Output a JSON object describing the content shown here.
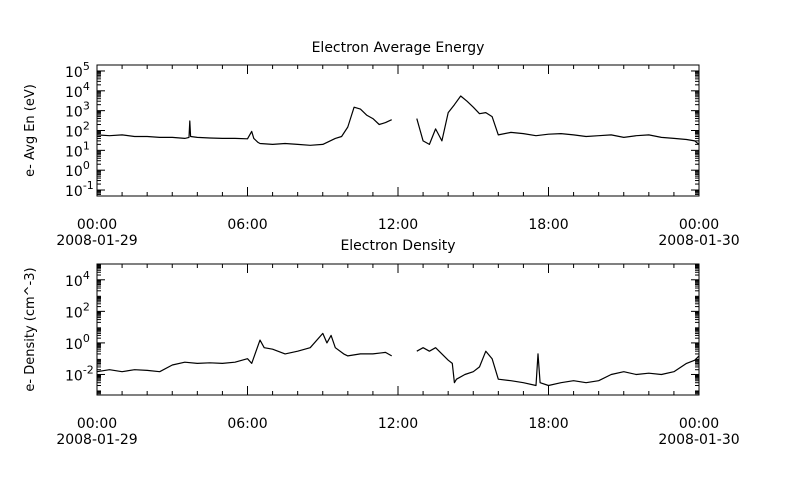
{
  "chart_data": [
    {
      "type": "line",
      "title": "Electron Average Energy",
      "ylabel": "e- Avg En (eV)",
      "yscale": "log",
      "ylim": [
        0.05,
        200000
      ],
      "y_ticks": [
        {
          "base": "10",
          "exp": "-1"
        },
        {
          "base": "10",
          "exp": "0"
        },
        {
          "base": "10",
          "exp": "1"
        },
        {
          "base": "10",
          "exp": "2"
        },
        {
          "base": "10",
          "exp": "3"
        },
        {
          "base": "10",
          "exp": "4"
        },
        {
          "base": "10",
          "exp": "5"
        }
      ],
      "xlim": [
        "2008-01-29T00:00",
        "2008-01-30T00:00"
      ],
      "x_ticks": [
        {
          "time": "00:00",
          "date": "2008-01-29"
        },
        {
          "time": "06:00",
          "date": ""
        },
        {
          "time": "12:00",
          "date": ""
        },
        {
          "time": "18:00",
          "date": ""
        },
        {
          "time": "00:00",
          "date": "2008-01-30"
        }
      ],
      "grid": false,
      "series": [
        {
          "color": "#000000",
          "x": [
            "00:00",
            "00:30",
            "01:00",
            "01:30",
            "02:00",
            "02:30",
            "03:00",
            "03:30",
            "03:40",
            "03:42",
            "03:44",
            "04:00",
            "04:30",
            "05:00",
            "05:30",
            "06:00",
            "06:10",
            "06:15",
            "06:25",
            "06:30",
            "07:00",
            "07:30",
            "08:00",
            "08:30",
            "09:00",
            "09:30",
            "09:45",
            "10:00",
            "10:15",
            "10:30",
            "10:45",
            "11:00",
            "11:15",
            "11:30",
            "11:45",
            "null",
            "12:45",
            "13:00",
            "13:15",
            "13:30",
            "13:45",
            "14:00",
            "14:15",
            "14:30",
            "14:45",
            "15:00",
            "15:15",
            "15:30",
            "15:45",
            "16:00",
            "16:30",
            "17:00",
            "17:30",
            "18:00",
            "18:30",
            "19:00",
            "19:30",
            "20:00",
            "20:30",
            "21:00",
            "21:30",
            "22:00",
            "22:30",
            "23:00",
            "23:30",
            "23:50",
            "24:00"
          ],
          "values": [
            60,
            55,
            60,
            50,
            50,
            45,
            45,
            40,
            45,
            300,
            50,
            45,
            42,
            40,
            40,
            38,
            90,
            40,
            25,
            22,
            20,
            22,
            20,
            18,
            20,
            40,
            50,
            150,
            1500,
            1200,
            600,
            400,
            200,
            250,
            350,
            null,
            400,
            30,
            20,
            120,
            30,
            800,
            2000,
            5500,
            3000,
            1500,
            700,
            800,
            500,
            60,
            80,
            70,
            55,
            65,
            70,
            60,
            50,
            55,
            60,
            45,
            55,
            60,
            45,
            40,
            35,
            30,
            20
          ]
        }
      ]
    },
    {
      "type": "line",
      "title": "Electron Density",
      "ylabel": "e- Density (cm^-3)",
      "yscale": "log",
      "ylim": [
        0.0005,
        100000
      ],
      "y_ticks": [
        {
          "base": "10",
          "exp": "-2"
        },
        {
          "base": "10",
          "exp": "0"
        },
        {
          "base": "10",
          "exp": "2"
        },
        {
          "base": "10",
          "exp": "4"
        }
      ],
      "xlim": [
        "2008-01-29T00:00",
        "2008-01-30T00:00"
      ],
      "x_ticks": [
        {
          "time": "00:00",
          "date": "2008-01-29"
        },
        {
          "time": "06:00",
          "date": ""
        },
        {
          "time": "12:00",
          "date": ""
        },
        {
          "time": "18:00",
          "date": ""
        },
        {
          "time": "00:00",
          "date": "2008-01-30"
        }
      ],
      "grid": false,
      "series": [
        {
          "color": "#000000",
          "x": [
            "00:00",
            "00:30",
            "01:00",
            "01:30",
            "02:00",
            "02:30",
            "03:00",
            "03:30",
            "04:00",
            "04:30",
            "05:00",
            "05:30",
            "06:00",
            "06:10",
            "06:30",
            "06:40",
            "07:00",
            "07:30",
            "08:00",
            "08:30",
            "09:00",
            "09:10",
            "09:20",
            "09:30",
            "09:50",
            "10:00",
            "10:30",
            "11:00",
            "11:30",
            "11:45",
            "null",
            "12:45",
            "13:00",
            "13:15",
            "13:30",
            "13:45",
            "14:00",
            "14:10",
            "14:15",
            "14:20",
            "14:40",
            "15:00",
            "15:15",
            "15:30",
            "15:45",
            "16:00",
            "16:30",
            "17:00",
            "17:30",
            "17:35",
            "17:40",
            "18:00",
            "18:30",
            "19:00",
            "19:30",
            "20:00",
            "20:30",
            "21:00",
            "21:30",
            "22:00",
            "22:30",
            "23:00",
            "23:30",
            "23:50",
            "24:00"
          ],
          "values": [
            0.015,
            0.02,
            0.015,
            0.02,
            0.018,
            0.015,
            0.04,
            0.06,
            0.05,
            0.055,
            0.05,
            0.06,
            0.1,
            0.05,
            1.5,
            0.5,
            0.4,
            0.2,
            0.3,
            0.5,
            4,
            1,
            3,
            0.5,
            0.2,
            0.15,
            0.2,
            0.2,
            0.25,
            0.15,
            null,
            0.3,
            0.5,
            0.3,
            0.5,
            0.2,
            0.08,
            0.05,
            0.003,
            0.005,
            0.01,
            0.015,
            0.03,
            0.3,
            0.1,
            0.005,
            0.004,
            0.003,
            0.002,
            0.2,
            0.003,
            0.002,
            0.003,
            0.004,
            0.003,
            0.004,
            0.01,
            0.015,
            0.01,
            0.012,
            0.01,
            0.015,
            0.05,
            0.08,
            0.15
          ]
        }
      ]
    }
  ]
}
